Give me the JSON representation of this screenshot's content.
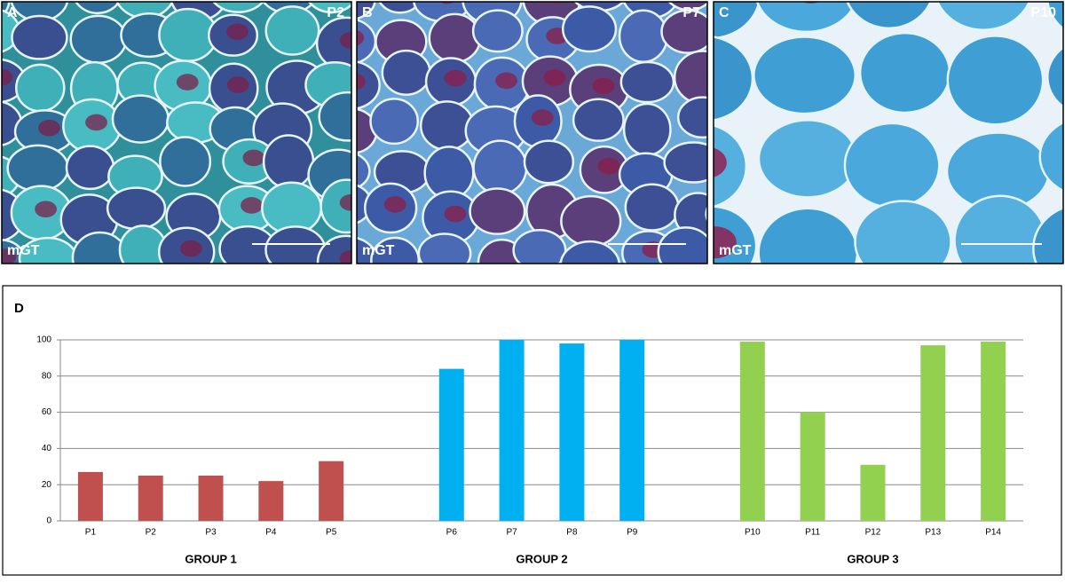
{
  "panels": [
    {
      "letter": "A",
      "patient": "P2",
      "stain": "mGT"
    },
    {
      "letter": "B",
      "patient": "P7",
      "stain": "mGT"
    },
    {
      "letter": "C",
      "patient": "P10",
      "stain": "mGT"
    }
  ],
  "chart_data": {
    "type": "bar",
    "label": "D",
    "categories": [
      "P1",
      "P2",
      "P3",
      "P4",
      "P5",
      null,
      "P6",
      "P7",
      "P8",
      "P9",
      null,
      "P10",
      "P11",
      "P12",
      "P13",
      "P14"
    ],
    "series": [
      {
        "name": "GROUP 1",
        "color": "#c0504d",
        "values": [
          27,
          25,
          25,
          22,
          33,
          null,
          null,
          null,
          null,
          null,
          null,
          null,
          null,
          null,
          null,
          null
        ]
      },
      {
        "name": "GROUP 2",
        "color": "#00b0f0",
        "values": [
          null,
          null,
          null,
          null,
          null,
          null,
          84,
          100,
          98,
          100,
          null,
          null,
          null,
          null,
          null,
          null
        ]
      },
      {
        "name": "GROUP 3",
        "color": "#92d050",
        "values": [
          null,
          null,
          null,
          null,
          null,
          null,
          null,
          null,
          null,
          null,
          null,
          99,
          60,
          31,
          97,
          99
        ]
      }
    ],
    "ylim": [
      0,
      100
    ],
    "yticks": [
      0,
      20,
      40,
      60,
      80,
      100
    ],
    "grid": true
  }
}
